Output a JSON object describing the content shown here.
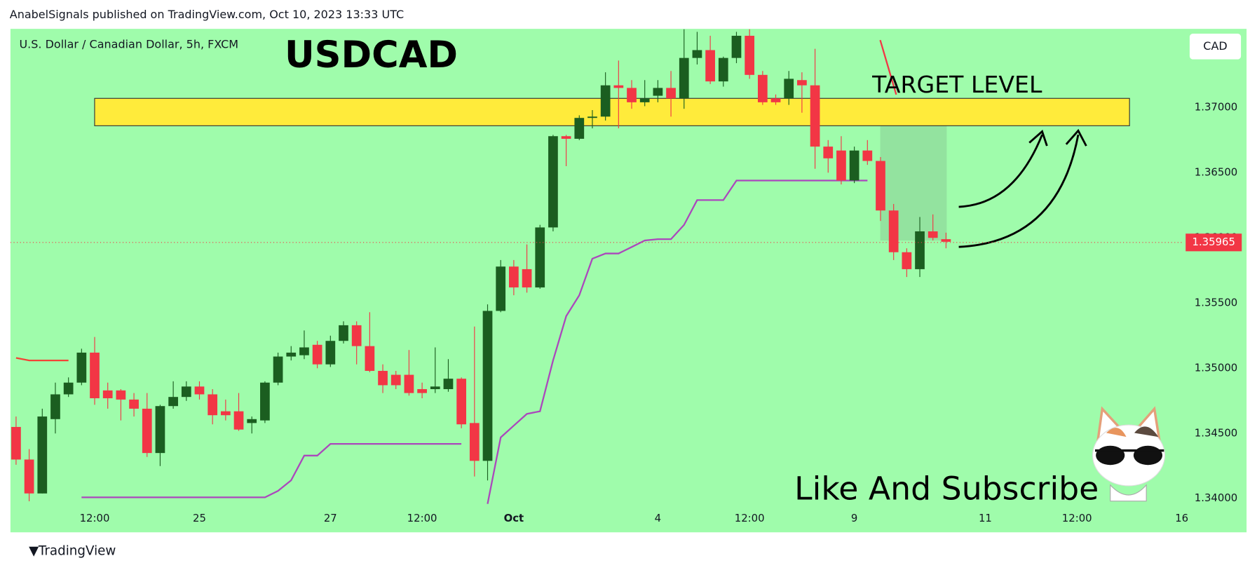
{
  "chart_data": {
    "type": "candlestick",
    "publisher_line": "AnabelSignals published on TradingView.com, Oct 10, 2023 13:33 UTC",
    "symbol": "U.S. Dollar / Canadian Dollar, 5h, FXCM",
    "title": "USDCAD",
    "annotations": [
      "TARGET LEVEL",
      "Like And Subscribe"
    ],
    "currency": "CAD",
    "brand": "TradingView",
    "up_color": "#1b5e20",
    "down_color": "#f23645",
    "open": [
      1.3455,
      1.343,
      1.3404,
      1.3461,
      1.348,
      1.3489,
      1.3512,
      1.3483,
      1.3483,
      1.3476,
      1.3469,
      1.3435,
      1.3471,
      1.3478,
      1.3486,
      1.348,
      1.3467,
      1.3467,
      1.3458,
      1.346,
      1.3489,
      1.3509,
      1.351,
      1.3518,
      1.3503,
      1.3521,
      1.3533,
      1.3517,
      1.3498,
      1.3495,
      1.3495,
      1.3484,
      1.3484,
      1.3484,
      1.3492,
      1.3458,
      1.3429,
      1.3544,
      1.3578,
      1.3576,
      1.3562,
      1.3608,
      1.3678,
      1.3676,
      1.3692,
      1.3693,
      1.3717,
      1.3715,
      1.3704,
      1.3709,
      1.3715,
      1.3707,
      1.3738,
      1.3744,
      1.372,
      1.3738,
      1.3755,
      1.3725,
      1.3707,
      1.3707,
      1.3721,
      1.3717,
      1.367,
      1.3667,
      1.3644,
      1.3667,
      1.3659,
      1.3621,
      1.3589,
      1.3576,
      1.3605,
      1.3599
    ],
    "high": [
      1.3463,
      1.3438,
      1.3469,
      1.3489,
      1.3493,
      1.3515,
      1.3524,
      1.3489,
      1.3484,
      1.3481,
      1.3481,
      1.3472,
      1.349,
      1.349,
      1.349,
      1.3484,
      1.3476,
      1.3481,
      1.3463,
      1.349,
      1.3512,
      1.3517,
      1.3529,
      1.3521,
      1.3525,
      1.3536,
      1.3536,
      1.3543,
      1.3503,
      1.3498,
      1.3514,
      1.3489,
      1.3516,
      1.3507,
      1.3493,
      1.3532,
      1.3549,
      1.3583,
      1.3583,
      1.3595,
      1.361,
      1.3679,
      1.3679,
      1.3694,
      1.3698,
      1.3727,
      1.3736,
      1.3721,
      1.3721,
      1.3721,
      1.3728,
      1.376,
      1.3758,
      1.3755,
      1.3739,
      1.3758,
      1.376,
      1.3728,
      1.371,
      1.3728,
      1.3727,
      1.3745,
      1.3675,
      1.3678,
      1.367,
      1.3675,
      1.3662,
      1.3626,
      1.3592,
      1.3616,
      1.3618,
      1.3604
    ],
    "low": [
      1.3426,
      1.3398,
      1.3404,
      1.345,
      1.3478,
      1.3487,
      1.3472,
      1.3469,
      1.346,
      1.3463,
      1.3432,
      1.3425,
      1.3469,
      1.3475,
      1.3476,
      1.3457,
      1.346,
      1.3452,
      1.345,
      1.3458,
      1.3487,
      1.3506,
      1.3507,
      1.35,
      1.3501,
      1.3519,
      1.3503,
      1.3497,
      1.3481,
      1.3484,
      1.3479,
      1.3477,
      1.3481,
      1.3482,
      1.3454,
      1.3417,
      1.3414,
      1.3543,
      1.3556,
      1.3558,
      1.3561,
      1.3605,
      1.3655,
      1.3675,
      1.3684,
      1.369,
      1.3684,
      1.3699,
      1.3701,
      1.3704,
      1.3693,
      1.3699,
      1.3733,
      1.3718,
      1.3716,
      1.3734,
      1.3722,
      1.3702,
      1.3702,
      1.3702,
      1.3696,
      1.3653,
      1.365,
      1.3641,
      1.3642,
      1.3656,
      1.3613,
      1.3583,
      1.357,
      1.357,
      1.3598,
      1.3592
    ],
    "close": [
      1.343,
      1.3404,
      1.3463,
      1.348,
      1.3489,
      1.3512,
      1.3477,
      1.3477,
      1.3476,
      1.3469,
      1.3435,
      1.3471,
      1.3478,
      1.3486,
      1.348,
      1.3464,
      1.3464,
      1.3453,
      1.3461,
      1.3489,
      1.3509,
      1.3512,
      1.3516,
      1.3503,
      1.3521,
      1.3533,
      1.3517,
      1.3498,
      1.3487,
      1.3487,
      1.3481,
      1.3481,
      1.3486,
      1.3492,
      1.3457,
      1.3429,
      1.3544,
      1.3578,
      1.3562,
      1.3562,
      1.3608,
      1.3678,
      1.3676,
      1.3692,
      1.3693,
      1.3717,
      1.3715,
      1.3704,
      1.3707,
      1.3715,
      1.3707,
      1.3738,
      1.3744,
      1.372,
      1.3738,
      1.3755,
      1.3725,
      1.3704,
      1.3704,
      1.3722,
      1.3717,
      1.367,
      1.3661,
      1.3644,
      1.3667,
      1.3659,
      1.3621,
      1.3589,
      1.3576,
      1.3605,
      1.36,
      1.3597
    ],
    "lines": [
      {
        "color": "#ab47bc",
        "values": [
          null,
          null,
          null,
          null,
          null,
          1.3401,
          1.3401,
          1.3401,
          1.3401,
          1.3401,
          1.3401,
          1.3401,
          1.3401,
          1.3401,
          1.3401,
          1.3401,
          1.3401,
          1.3401,
          1.3401,
          1.3401,
          1.3406,
          1.3414,
          1.3433,
          1.3433,
          1.3442,
          1.3442,
          1.3442,
          1.3442,
          1.3442,
          1.3442,
          1.3442,
          1.3442,
          1.3442,
          1.3442,
          1.3442,
          null,
          1.3396,
          1.3447,
          1.3456,
          1.3465,
          1.3467,
          1.3506,
          1.354,
          1.3556,
          1.3584,
          1.3588,
          1.3588,
          1.3593,
          1.3598,
          1.3599,
          1.3599,
          1.361,
          1.3629,
          1.3629,
          1.3629,
          1.3644,
          1.3644,
          1.3644,
          1.3644,
          1.3644,
          1.3644,
          1.3644,
          1.3644,
          1.3644,
          1.3644,
          1.3644,
          null,
          null,
          null,
          null,
          null,
          null
        ]
      },
      {
        "color": "#f44336",
        "values": [
          1.3508,
          1.3506,
          1.3506,
          1.3506,
          1.3506,
          null,
          null,
          null,
          null,
          null,
          null,
          null,
          null,
          null,
          null,
          null,
          null,
          null,
          null,
          null,
          null,
          null,
          null,
          null,
          null,
          null,
          null,
          null,
          null,
          null,
          null,
          null,
          null,
          null,
          null,
          null,
          null,
          null,
          null,
          null,
          null,
          null,
          null,
          null,
          null,
          null,
          null,
          null,
          null,
          null,
          null,
          null,
          null,
          null,
          null,
          null,
          null,
          null,
          null,
          null,
          null,
          null,
          null,
          null,
          null,
          null,
          null,
          null,
          null,
          null,
          null,
          null
        ]
      }
    ],
    "target_zone": [
      1.3686,
      1.3707
    ],
    "zone_color": "#ffeb3b",
    "last_price": {
      "value": 1.35965,
      "label": "1.35965"
    },
    "xlim": [
      -0.43,
      89.05
    ],
    "xticks": [
      {
        "value": 6,
        "label": "12:00"
      },
      {
        "value": 14,
        "label": "25"
      },
      {
        "value": 24,
        "label": "27"
      },
      {
        "value": 31,
        "label": "12:00"
      },
      {
        "value": 38,
        "label": "Oct"
      },
      {
        "value": 49,
        "label": "4"
      },
      {
        "value": 56,
        "label": "12:00"
      },
      {
        "value": 64,
        "label": "9"
      },
      {
        "value": 74,
        "label": "11"
      },
      {
        "value": 81,
        "label": "12:00"
      },
      {
        "value": 89,
        "label": "16"
      }
    ],
    "ylim": [
      1.33748,
      1.37603
    ],
    "yticks": [
      {
        "value": 1.34,
        "label": "1.34000"
      },
      {
        "value": 1.345,
        "label": "1.34500"
      },
      {
        "value": 1.35,
        "label": "1.35000"
      },
      {
        "value": 1.355,
        "label": "1.35500"
      },
      {
        "value": 1.36,
        "label": "1.36000"
      },
      {
        "value": 1.365,
        "label": "1.36500"
      },
      {
        "value": 1.37,
        "label": "1.37000"
      }
    ]
  }
}
